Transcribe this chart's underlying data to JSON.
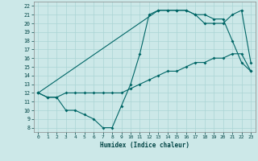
{
  "title": "",
  "xlabel": "Humidex (Indice chaleur)",
  "bg_color": "#cce8e8",
  "line_color": "#006666",
  "grid_color": "#aad4d4",
  "xlim": [
    -0.5,
    23.5
  ],
  "ylim": [
    7.5,
    22.5
  ],
  "xticks": [
    0,
    1,
    2,
    3,
    4,
    5,
    6,
    7,
    8,
    9,
    10,
    11,
    12,
    13,
    14,
    15,
    16,
    17,
    18,
    19,
    20,
    21,
    22,
    23
  ],
  "yticks": [
    8,
    9,
    10,
    11,
    12,
    13,
    14,
    15,
    16,
    17,
    18,
    19,
    20,
    21,
    22
  ],
  "line1_x": [
    0,
    1,
    2,
    3,
    4,
    5,
    6,
    7,
    8,
    9,
    10,
    11,
    12,
    13,
    14,
    15,
    16,
    17,
    18,
    19,
    20,
    21,
    22,
    23
  ],
  "line1_y": [
    12,
    11.5,
    11.5,
    10,
    10,
    9.5,
    9,
    8,
    8,
    10.5,
    13,
    16.5,
    21,
    21.5,
    21.5,
    21.5,
    21.5,
    21,
    21,
    20.5,
    20.5,
    18,
    15.5,
    14.5
  ],
  "line2_x": [
    0,
    1,
    2,
    3,
    4,
    5,
    6,
    7,
    8,
    9,
    10,
    11,
    12,
    13,
    14,
    15,
    16,
    17,
    18,
    19,
    20,
    21,
    22,
    23
  ],
  "line2_y": [
    12,
    11.5,
    11.5,
    12,
    12,
    12,
    12,
    12,
    12,
    12,
    12.5,
    13,
    13.5,
    14,
    14.5,
    14.5,
    15,
    15.5,
    15.5,
    16,
    16,
    16.5,
    16.5,
    14.5
  ],
  "line3_x": [
    0,
    13,
    14,
    15,
    16,
    17,
    18,
    19,
    20,
    21,
    22,
    23
  ],
  "line3_y": [
    12,
    21.5,
    21.5,
    21.5,
    21.5,
    21,
    20,
    20,
    20,
    21,
    21.5,
    15.5
  ],
  "markersize": 2.0,
  "linewidth": 0.8
}
